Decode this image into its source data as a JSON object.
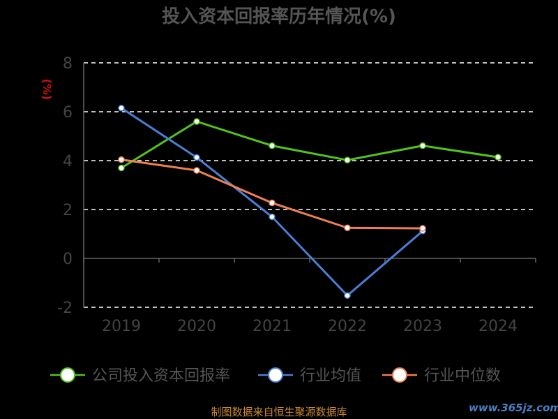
{
  "chart_data": {
    "type": "line",
    "title": "投入资本回报率历年情况(%)",
    "ylabel": "(%)",
    "categories": [
      "2019",
      "2020",
      "2021",
      "2022",
      "2023",
      "2024"
    ],
    "yticks": [
      "8",
      "6",
      "4",
      "2",
      "0",
      "-2"
    ],
    "ylim": [
      -2,
      8
    ],
    "grid": true,
    "legend_position": "bottom",
    "series": [
      {
        "name": "公司投入资本回报率",
        "color": "#52c41a",
        "values": [
          3.7,
          5.6,
          4.61,
          4.02,
          4.61,
          4.14
        ]
      },
      {
        "name": "行业均值",
        "color": "#4a7fd6",
        "values": [
          6.15,
          4.13,
          1.7,
          -1.52,
          1.12,
          null
        ]
      },
      {
        "name": "行业中位数",
        "color": "#f08050",
        "values": [
          4.04,
          3.6,
          2.27,
          1.25,
          1.23,
          null
        ]
      }
    ]
  },
  "footer": {
    "source": "制图数据来自恒生聚源数据库",
    "watermark": "www.365jz.com"
  }
}
